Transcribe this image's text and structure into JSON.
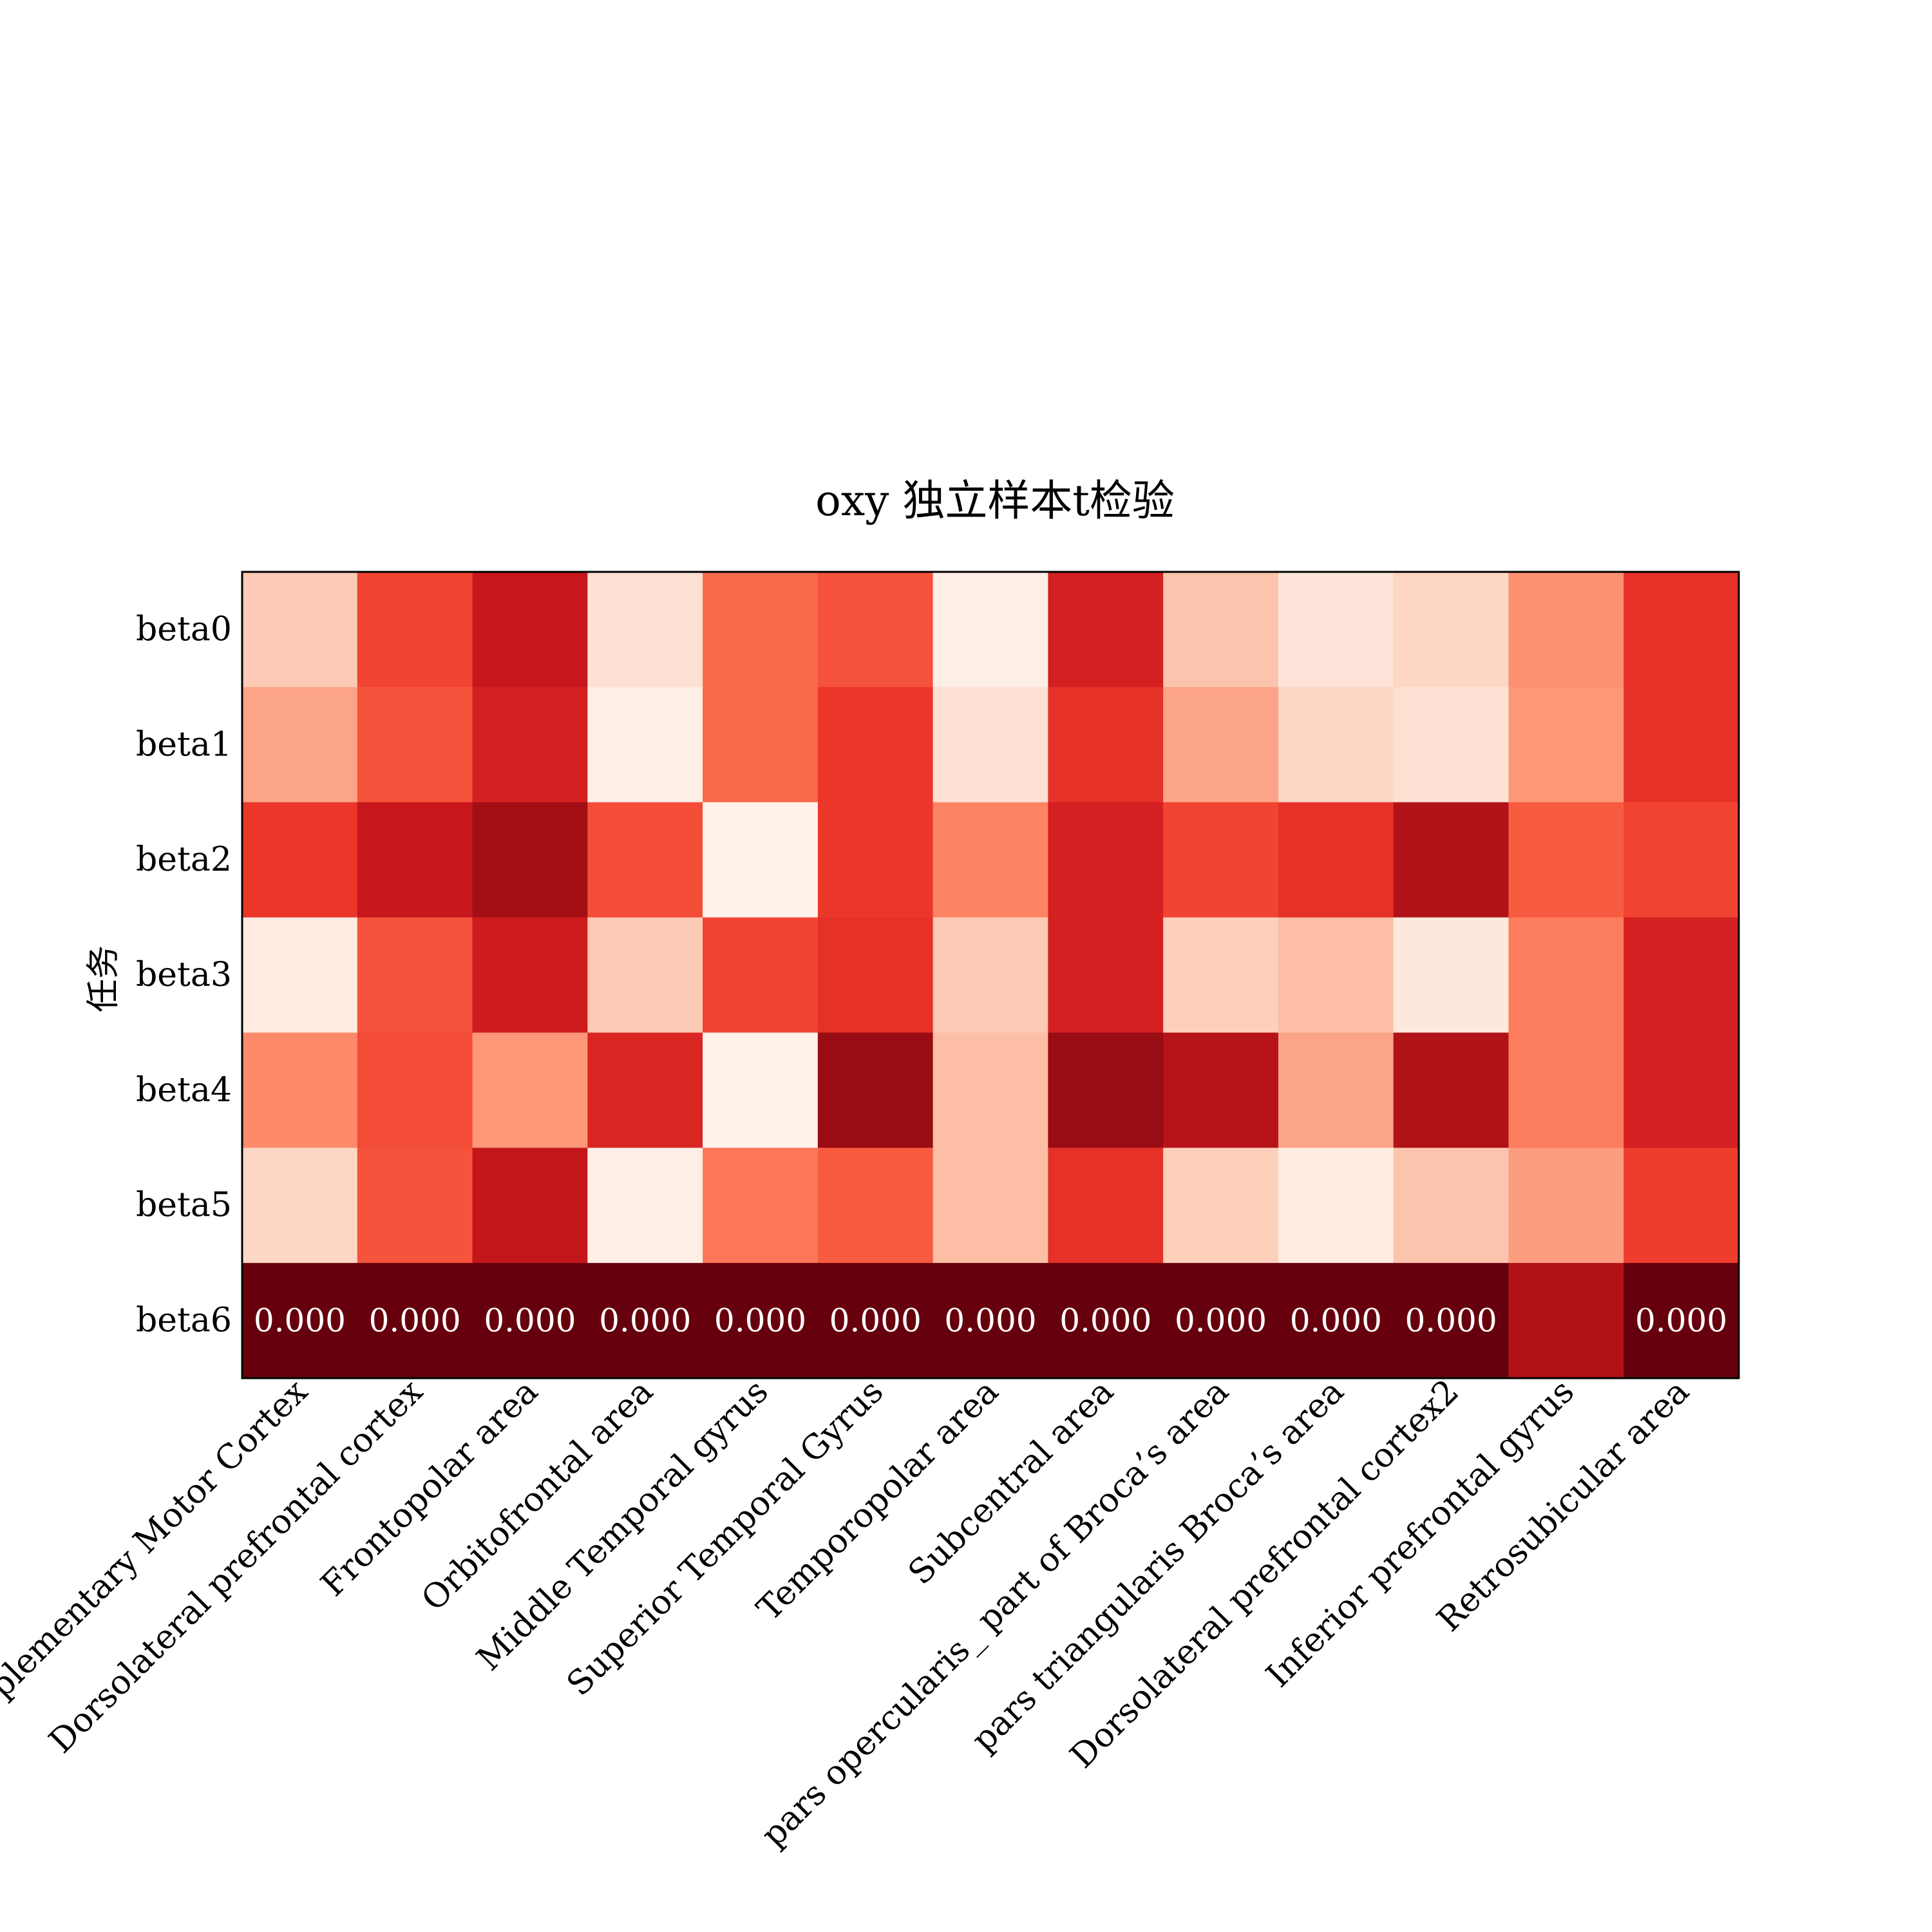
{
  "chart_data": {
    "type": "heatmap",
    "title": "oxy  独立样本t检验",
    "xlabel": "",
    "ylabel": "任务",
    "x_categories": [
      "Pre-Motor and Supplementary Motor Cortex",
      "Dorsolateral prefrontal cortex",
      "Frontopolar area",
      "Orbitofrontal area",
      "Middle Temporal gyrus",
      "Superior Temporal Gyrus",
      "Temporopolar area",
      "Subcentral area",
      "pars opercularis_ part of Broca’s area",
      "pars triangularis Broca’s area",
      "Dorsolateral prefrontal cortex2",
      "Inferior prefrontal gyrus",
      "Retrosubicular area"
    ],
    "y_categories": [
      "beta0",
      "beta1",
      "beta2",
      "beta3",
      "beta4",
      "beta5",
      "beta6"
    ],
    "colormap": [
      "#fff5f0",
      "#fee0d2",
      "#fcbba1",
      "#fc9272",
      "#fb6a4a",
      "#ef3b2c",
      "#cb181d",
      "#a50f15",
      "#67000d"
    ],
    "color_scale": "reversed",
    "values": [
      [
        0.8,
        0.4,
        0.24,
        0.88,
        0.5,
        0.44,
        0.96,
        0.28,
        0.78,
        0.9,
        0.84,
        0.62,
        0.34
      ],
      [
        0.68,
        0.44,
        0.28,
        0.96,
        0.5,
        0.36,
        0.88,
        0.34,
        0.68,
        0.84,
        0.88,
        0.64,
        0.34
      ],
      [
        0.36,
        0.24,
        0.12,
        0.42,
        0.98,
        0.36,
        0.58,
        0.28,
        0.4,
        0.34,
        0.16,
        0.46,
        0.4
      ],
      [
        0.94,
        0.44,
        0.26,
        0.8,
        0.4,
        0.34,
        0.8,
        0.28,
        0.82,
        0.76,
        0.92,
        0.56,
        0.28
      ],
      [
        0.6,
        0.42,
        0.64,
        0.3,
        0.98,
        0.1,
        0.76,
        0.1,
        0.18,
        0.68,
        0.16,
        0.56,
        0.28
      ],
      [
        0.84,
        0.44,
        0.22,
        0.96,
        0.54,
        0.46,
        0.76,
        0.34,
        0.82,
        0.94,
        0.78,
        0.66,
        0.38
      ],
      [
        0.0,
        0.0,
        0.0,
        0.0,
        0.0,
        0.0,
        0.0,
        0.0,
        0.0,
        0.0,
        0.0,
        0.16,
        0.0
      ]
    ],
    "annotations": [
      {
        "row": 6,
        "col": 0,
        "text": "0.000"
      },
      {
        "row": 6,
        "col": 1,
        "text": "0.000"
      },
      {
        "row": 6,
        "col": 2,
        "text": "0.000"
      },
      {
        "row": 6,
        "col": 3,
        "text": "0.000"
      },
      {
        "row": 6,
        "col": 4,
        "text": "0.000"
      },
      {
        "row": 6,
        "col": 5,
        "text": "0.000"
      },
      {
        "row": 6,
        "col": 6,
        "text": "0.000"
      },
      {
        "row": 6,
        "col": 7,
        "text": "0.000"
      },
      {
        "row": 6,
        "col": 8,
        "text": "0.000"
      },
      {
        "row": 6,
        "col": 9,
        "text": "0.000"
      },
      {
        "row": 6,
        "col": 10,
        "text": "0.000"
      },
      {
        "row": 6,
        "col": 12,
        "text": "0.000"
      }
    ],
    "grid": false,
    "legend": "none"
  }
}
